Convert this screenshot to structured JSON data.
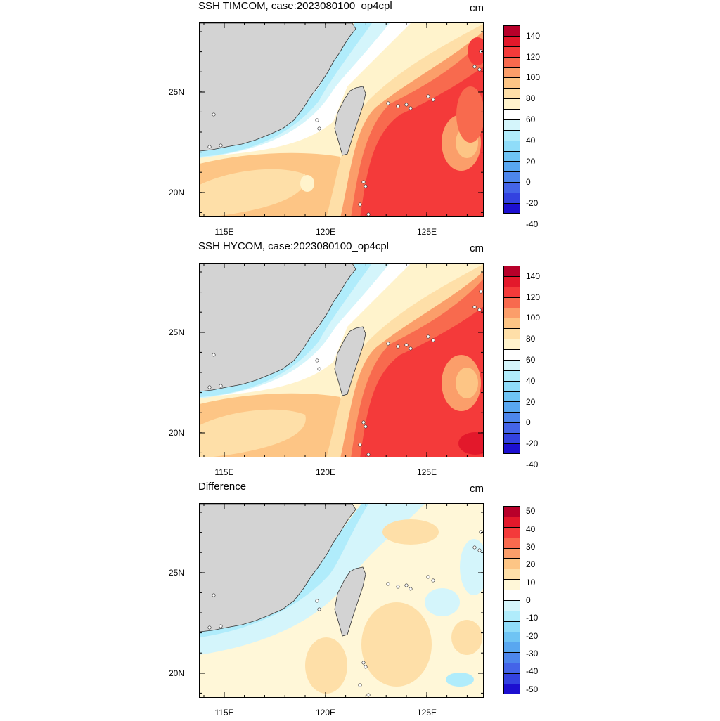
{
  "panels": [
    {
      "title": "SSH TIMCOM, case:2023080100_op4cpl",
      "units": "cm",
      "y_ticks": [
        "25N",
        "20N"
      ],
      "x_ticks": [
        "115E",
        "120E",
        "125E"
      ],
      "colorbar_labels": [
        "140",
        "120",
        "100",
        "80",
        "60",
        "40",
        "20",
        "0",
        "-20",
        "-40"
      ],
      "colorbar_colors": [
        "#b8002a",
        "#e3182b",
        "#f43a3a",
        "#f86a4e",
        "#fb9e6a",
        "#fdc585",
        "#fedfa8",
        "#fff3cc",
        "#ffffff",
        "#d4f5fb",
        "#b0ecfb",
        "#8fdcf9",
        "#6fc4f4",
        "#59a7f0",
        "#4d86ec",
        "#4464e8",
        "#3342e0",
        "#1c0fd0"
      ]
    },
    {
      "title": "SSH HYCOM, case:2023080100_op4cpl",
      "units": "cm",
      "y_ticks": [
        "25N",
        "20N"
      ],
      "x_ticks": [
        "115E",
        "120E",
        "125E"
      ],
      "colorbar_labels": [
        "140",
        "120",
        "100",
        "80",
        "60",
        "40",
        "20",
        "0",
        "-20",
        "-40"
      ],
      "colorbar_colors": [
        "#b8002a",
        "#e3182b",
        "#f43a3a",
        "#f86a4e",
        "#fb9e6a",
        "#fdc585",
        "#fedfa8",
        "#fff3cc",
        "#ffffff",
        "#d4f5fb",
        "#b0ecfb",
        "#8fdcf9",
        "#6fc4f4",
        "#59a7f0",
        "#4d86ec",
        "#4464e8",
        "#3342e0",
        "#1c0fd0"
      ]
    },
    {
      "title": "Difference",
      "units": "cm",
      "y_ticks": [
        "25N",
        "20N"
      ],
      "x_ticks": [
        "115E",
        "120E",
        "125E"
      ],
      "colorbar_labels": [
        "50",
        "40",
        "30",
        "20",
        "10",
        "0",
        "-10",
        "-20",
        "-30",
        "-40",
        "-50"
      ],
      "colorbar_colors": [
        "#b8002a",
        "#e3182b",
        "#f43a3a",
        "#f86a4e",
        "#fb9e6a",
        "#fdc585",
        "#fedfa8",
        "#fff7d8",
        "#ffffff",
        "#d4f5fb",
        "#b0ecfb",
        "#8fdcf9",
        "#6fc4f4",
        "#59a7f0",
        "#4d86ec",
        "#4464e8",
        "#3342e0",
        "#1c0fd0"
      ]
    }
  ],
  "map_colors": {
    "land": "#d3d3d3",
    "coast": "#333333"
  }
}
